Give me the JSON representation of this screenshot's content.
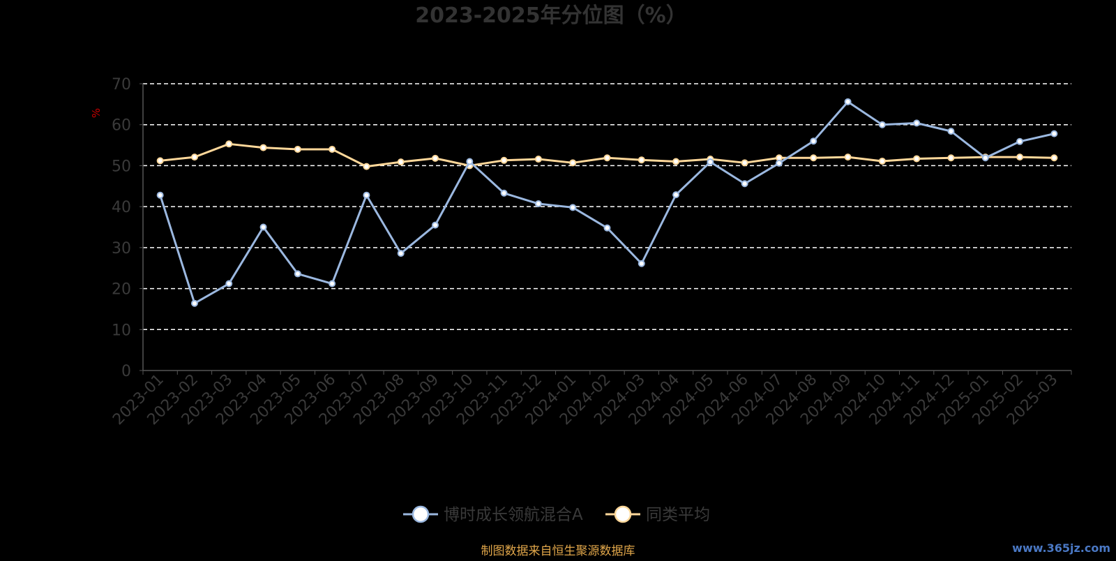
{
  "colors": {
    "background": "#000000",
    "title": "#333333",
    "axis_text": "#3a3a3a",
    "axis_line": "#555555",
    "grid": "#ffffff",
    "ylabel": "#cc0000",
    "source": "#e0a64a",
    "watermark": "#4a78c4"
  },
  "chart_data": {
    "type": "line",
    "title": "2023-2025年分位图（%）",
    "ylabel": "%",
    "ylim": [
      0,
      70
    ],
    "yticks": [
      0,
      10,
      20,
      30,
      40,
      50,
      60,
      70
    ],
    "grid": true,
    "grid_style": "dashed",
    "legend_position": "bottom-center",
    "categories": [
      "2023-01",
      "2023-02",
      "2023-03",
      "2023-04",
      "2023-05",
      "2023-06",
      "2023-07",
      "2023-08",
      "2023-09",
      "2023-10",
      "2023-11",
      "2023-12",
      "2024-01",
      "2024-02",
      "2024-03",
      "2024-04",
      "2024-05",
      "2024-06",
      "2024-07",
      "2024-08",
      "2024-09",
      "2024-10",
      "2024-11",
      "2024-12",
      "2025-01",
      "2025-02",
      "2025-03"
    ],
    "series": [
      {
        "name": "博时成长领航混合A",
        "color": "#9bb8e0",
        "values": [
          42.8,
          16.4,
          21.2,
          35.0,
          23.6,
          21.2,
          42.8,
          28.6,
          35.5,
          51.0,
          43.3,
          40.7,
          39.8,
          34.8,
          26.1,
          42.9,
          50.9,
          45.6,
          50.6,
          56.0,
          65.6,
          60.0,
          60.4,
          58.4,
          51.9,
          55.9,
          57.8
        ]
      },
      {
        "name": "同类平均",
        "color": "#ffd89a",
        "values": [
          51.2,
          52.1,
          55.3,
          54.4,
          54.0,
          54.0,
          49.8,
          50.9,
          51.8,
          50.0,
          51.3,
          51.6,
          50.7,
          51.9,
          51.4,
          51.0,
          51.6,
          50.7,
          51.9,
          51.9,
          52.1,
          51.1,
          51.7,
          51.9,
          52.1,
          52.1,
          51.9
        ]
      }
    ]
  },
  "footer": {
    "source": "制图数据来自恒生聚源数据库",
    "watermark": "www.365jz.com"
  }
}
